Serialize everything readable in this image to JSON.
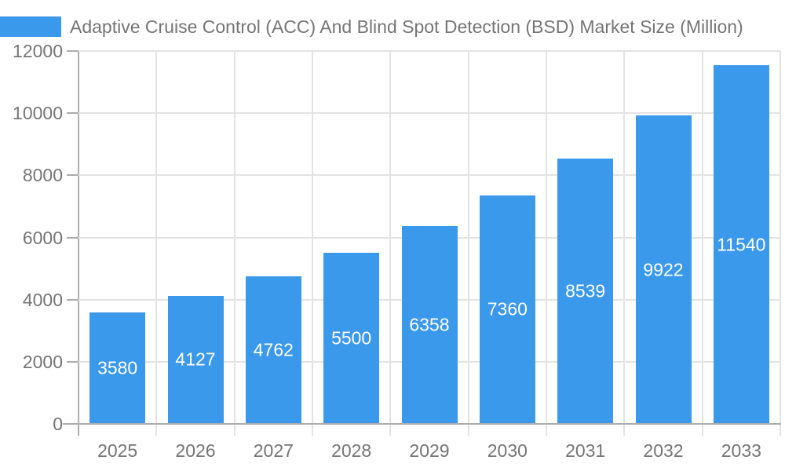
{
  "chart": {
    "legend_label": "Adaptive Cruise Control (ACC) And Blind Spot Detection (BSD) Market Size (Million)"
  },
  "chart_data": {
    "type": "bar",
    "title": "Adaptive Cruise Control (ACC) And Blind Spot Detection (BSD) Market Size (Million)",
    "categories": [
      "2025",
      "2026",
      "2027",
      "2028",
      "2029",
      "2030",
      "2031",
      "2032",
      "2033"
    ],
    "values": [
      3580,
      4127,
      4762,
      5500,
      6358,
      7360,
      8539,
      9922,
      11540
    ],
    "xlabel": "",
    "ylabel": "",
    "ylim": [
      0,
      12000
    ],
    "yticks": [
      0,
      2000,
      4000,
      6000,
      8000,
      10000,
      12000
    ],
    "grid": true,
    "legend_position": "top-left",
    "value_labels_inside_bars": true,
    "colors": {
      "bar": "#3B99EC",
      "bar_value_label": "#FFFFFF",
      "axis_line": "#ADADAD",
      "gridline": "#E3E3E3",
      "tick_text": "#757575",
      "title_text": "#757575",
      "background": "#FFFFFF"
    }
  }
}
